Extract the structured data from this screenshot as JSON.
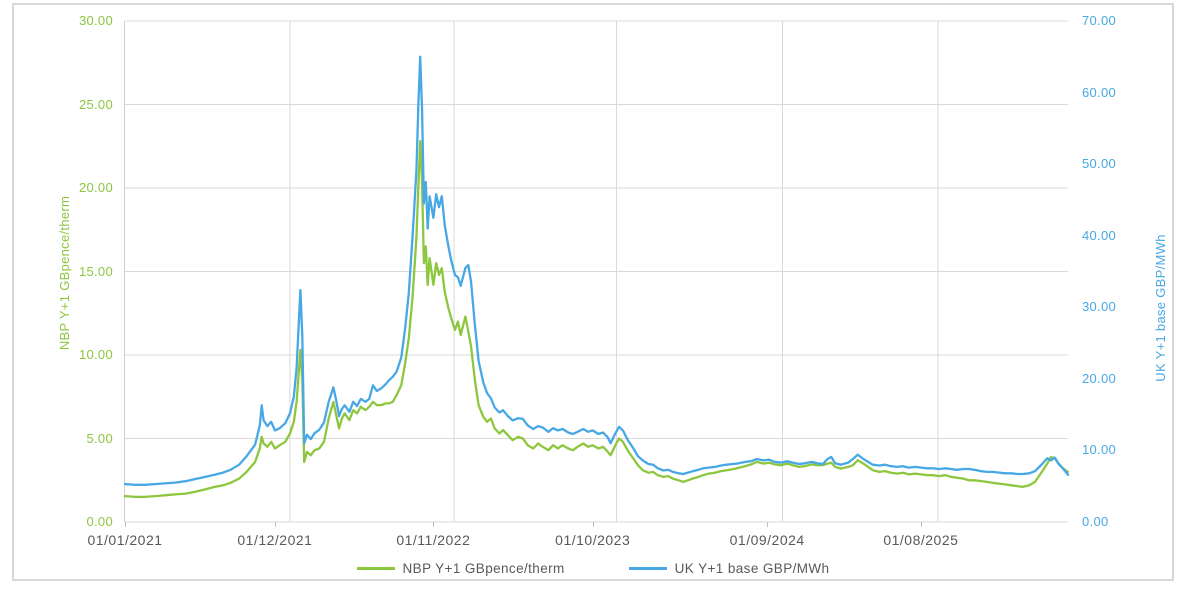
{
  "chart_data": {
    "type": "line",
    "title": "",
    "colors": {
      "grid": "#D9D9D9",
      "axis_text": "#595959",
      "frame_border": "#D8D8D8",
      "tick_mark": "#BFBFBF"
    },
    "left_axis": {
      "label": "NBP Y+1 GBpence/therm",
      "color": "#8DC63F",
      "min": 0,
      "max": 30,
      "ticks": [
        {
          "label": "0.00",
          "value": 0
        },
        {
          "label": "5.00",
          "value": 5
        },
        {
          "label": "10.00",
          "value": 10
        },
        {
          "label": "15.00",
          "value": 15
        },
        {
          "label": "20.00",
          "value": 20
        },
        {
          "label": "25.00",
          "value": 25
        },
        {
          "label": "30.00",
          "value": 30
        }
      ]
    },
    "right_axis": {
      "label": "UK Y+1 base GBP/MWh",
      "color": "#47A8E5",
      "min": 0,
      "max": 70,
      "ticks": [
        {
          "label": "0.00",
          "value": 0
        },
        {
          "label": "10.00",
          "value": 10
        },
        {
          "label": "20.00",
          "value": 20
        },
        {
          "label": "30.00",
          "value": 30
        },
        {
          "label": "40.00",
          "value": 40
        },
        {
          "label": "50.00",
          "value": 50
        },
        {
          "label": "60.00",
          "value": 60
        },
        {
          "label": "70.00",
          "value": 70
        }
      ]
    },
    "x_axis": {
      "ticks": [
        {
          "label": "01/01/2021",
          "label_pos": 0.0,
          "grid_pos": null
        },
        {
          "label": "01/12/2021",
          "label_pos": 0.159,
          "grid_pos": 0.175
        },
        {
          "label": "01/11/2022",
          "label_pos": 0.327,
          "grid_pos": 0.349
        },
        {
          "label": "01/10/2023",
          "label_pos": 0.496,
          "grid_pos": 0.521
        },
        {
          "label": "01/09/2024",
          "label_pos": 0.681,
          "grid_pos": 0.697
        },
        {
          "label": "01/08/2025",
          "label_pos": 0.844,
          "grid_pos": 0.862
        }
      ]
    },
    "x": [
      0.0,
      0.011,
      0.021,
      0.032,
      0.042,
      0.053,
      0.064,
      0.074,
      0.085,
      0.095,
      0.104,
      0.112,
      0.121,
      0.129,
      0.138,
      0.143,
      0.145,
      0.147,
      0.151,
      0.155,
      0.159,
      0.164,
      0.17,
      0.175,
      0.179,
      0.182,
      0.186,
      0.188,
      0.19,
      0.193,
      0.197,
      0.201,
      0.206,
      0.211,
      0.216,
      0.221,
      0.224,
      0.227,
      0.23,
      0.233,
      0.238,
      0.242,
      0.246,
      0.25,
      0.255,
      0.259,
      0.263,
      0.267,
      0.272,
      0.276,
      0.28,
      0.284,
      0.288,
      0.293,
      0.297,
      0.301,
      0.305,
      0.309,
      0.311,
      0.313,
      0.315,
      0.317,
      0.319,
      0.321,
      0.323,
      0.327,
      0.33,
      0.333,
      0.336,
      0.339,
      0.343,
      0.346,
      0.35,
      0.353,
      0.356,
      0.361,
      0.364,
      0.367,
      0.371,
      0.375,
      0.38,
      0.384,
      0.388,
      0.392,
      0.397,
      0.401,
      0.406,
      0.411,
      0.417,
      0.422,
      0.427,
      0.433,
      0.438,
      0.443,
      0.449,
      0.454,
      0.459,
      0.464,
      0.47,
      0.475,
      0.48,
      0.486,
      0.491,
      0.496,
      0.502,
      0.507,
      0.512,
      0.515,
      0.52,
      0.524,
      0.528,
      0.533,
      0.539,
      0.544,
      0.549,
      0.555,
      0.56,
      0.565,
      0.571,
      0.576,
      0.581,
      0.587,
      0.592,
      0.597,
      0.602,
      0.608,
      0.613,
      0.619,
      0.626,
      0.632,
      0.638,
      0.645,
      0.651,
      0.658,
      0.664,
      0.67,
      0.677,
      0.683,
      0.689,
      0.696,
      0.702,
      0.708,
      0.715,
      0.721,
      0.728,
      0.734,
      0.74,
      0.745,
      0.749,
      0.753,
      0.759,
      0.767,
      0.772,
      0.777,
      0.783,
      0.788,
      0.793,
      0.8,
      0.806,
      0.812,
      0.819,
      0.825,
      0.831,
      0.838,
      0.844,
      0.851,
      0.857,
      0.863,
      0.87,
      0.876,
      0.882,
      0.889,
      0.895,
      0.901,
      0.908,
      0.914,
      0.92,
      0.927,
      0.933,
      0.94,
      0.946,
      0.952,
      0.959,
      0.965,
      0.971,
      0.978,
      0.982,
      0.986,
      0.99,
      0.995,
      1.0
    ],
    "series": [
      {
        "name": "NBP Y+1 GBpence/therm",
        "axis": "left",
        "color": "#8DC63F",
        "values": [
          1.55,
          1.5,
          1.5,
          1.55,
          1.6,
          1.65,
          1.7,
          1.8,
          1.95,
          2.1,
          2.2,
          2.35,
          2.6,
          3.0,
          3.6,
          4.4,
          5.1,
          4.7,
          4.5,
          4.8,
          4.4,
          4.6,
          4.8,
          5.3,
          6.0,
          7.2,
          10.3,
          8.5,
          3.6,
          4.2,
          4.0,
          4.3,
          4.4,
          4.8,
          6.2,
          7.2,
          6.4,
          5.6,
          6.2,
          6.5,
          6.1,
          6.7,
          6.5,
          6.9,
          6.7,
          6.9,
          7.2,
          7.0,
          7.0,
          7.1,
          7.1,
          7.2,
          7.6,
          8.2,
          9.5,
          11.0,
          13.5,
          17.0,
          20.0,
          22.8,
          20.5,
          15.5,
          16.5,
          14.2,
          15.8,
          14.2,
          15.5,
          14.8,
          15.2,
          13.8,
          12.8,
          12.2,
          11.5,
          12.0,
          11.2,
          12.3,
          11.4,
          10.5,
          8.5,
          7.0,
          6.3,
          6.0,
          6.2,
          5.6,
          5.3,
          5.5,
          5.2,
          4.9,
          5.1,
          5.0,
          4.6,
          4.4,
          4.7,
          4.5,
          4.3,
          4.6,
          4.4,
          4.6,
          4.4,
          4.3,
          4.5,
          4.7,
          4.5,
          4.6,
          4.4,
          4.5,
          4.2,
          4.0,
          4.6,
          5.0,
          4.8,
          4.3,
          3.8,
          3.4,
          3.1,
          2.95,
          3.0,
          2.8,
          2.7,
          2.75,
          2.6,
          2.5,
          2.4,
          2.5,
          2.6,
          2.7,
          2.8,
          2.9,
          2.95,
          3.05,
          3.1,
          3.17,
          3.25,
          3.35,
          3.45,
          3.6,
          3.5,
          3.55,
          3.45,
          3.4,
          3.5,
          3.4,
          3.3,
          3.35,
          3.45,
          3.4,
          3.4,
          3.5,
          3.55,
          3.3,
          3.2,
          3.3,
          3.4,
          3.7,
          3.5,
          3.3,
          3.1,
          3.0,
          3.05,
          2.95,
          2.9,
          2.95,
          2.85,
          2.9,
          2.85,
          2.8,
          2.8,
          2.75,
          2.8,
          2.7,
          2.65,
          2.6,
          2.5,
          2.5,
          2.45,
          2.4,
          2.35,
          2.3,
          2.25,
          2.2,
          2.15,
          2.1,
          2.2,
          2.4,
          2.9,
          3.5,
          3.9,
          3.8,
          3.5,
          3.2,
          3.0
        ]
      },
      {
        "name": "UK Y+1 base GBP/MWh",
        "axis": "right",
        "color": "#47A8E5",
        "values": [
          5.3,
          5.2,
          5.2,
          5.3,
          5.4,
          5.5,
          5.7,
          6.0,
          6.3,
          6.6,
          6.9,
          7.3,
          8.0,
          9.2,
          10.8,
          13.5,
          16.3,
          14.2,
          13.4,
          14.0,
          12.8,
          13.1,
          13.8,
          15.2,
          17.5,
          21.5,
          32.4,
          26.0,
          11.0,
          12.2,
          11.6,
          12.4,
          12.9,
          13.9,
          16.8,
          18.8,
          17.0,
          14.8,
          15.8,
          16.3,
          15.4,
          16.8,
          16.2,
          17.2,
          16.8,
          17.2,
          19.1,
          18.3,
          18.7,
          19.2,
          19.8,
          20.3,
          21.0,
          23.0,
          27.0,
          32.0,
          40.0,
          49.0,
          58.0,
          65.0,
          58.0,
          44.5,
          47.5,
          41.0,
          45.5,
          42.5,
          45.8,
          44.0,
          45.5,
          41.5,
          38.5,
          36.5,
          34.5,
          34.2,
          33.0,
          35.5,
          35.9,
          33.5,
          27.5,
          22.5,
          19.5,
          18.0,
          17.3,
          16.0,
          15.3,
          15.6,
          14.8,
          14.2,
          14.5,
          14.4,
          13.5,
          13.0,
          13.4,
          13.2,
          12.6,
          13.1,
          12.8,
          13.0,
          12.5,
          12.3,
          12.6,
          13.0,
          12.6,
          12.8,
          12.3,
          12.5,
          11.8,
          11.0,
          12.4,
          13.3,
          12.8,
          11.5,
          10.3,
          9.2,
          8.6,
          8.1,
          8.0,
          7.5,
          7.2,
          7.3,
          7.0,
          6.8,
          6.7,
          6.9,
          7.1,
          7.3,
          7.5,
          7.6,
          7.7,
          7.9,
          8.0,
          8.1,
          8.2,
          8.4,
          8.5,
          8.8,
          8.6,
          8.7,
          8.4,
          8.3,
          8.5,
          8.3,
          8.1,
          8.2,
          8.4,
          8.2,
          8.1,
          8.8,
          9.1,
          8.2,
          8.0,
          8.3,
          8.8,
          9.4,
          8.8,
          8.4,
          8.0,
          7.9,
          8.0,
          7.8,
          7.7,
          7.8,
          7.6,
          7.7,
          7.6,
          7.5,
          7.5,
          7.4,
          7.5,
          7.4,
          7.3,
          7.4,
          7.4,
          7.3,
          7.1,
          7.0,
          7.0,
          6.9,
          6.8,
          6.8,
          6.7,
          6.7,
          6.8,
          7.1,
          7.9,
          8.9,
          8.6,
          9.0,
          8.1,
          7.4,
          6.6
        ]
      }
    ],
    "legend": {
      "position": "bottom"
    }
  }
}
